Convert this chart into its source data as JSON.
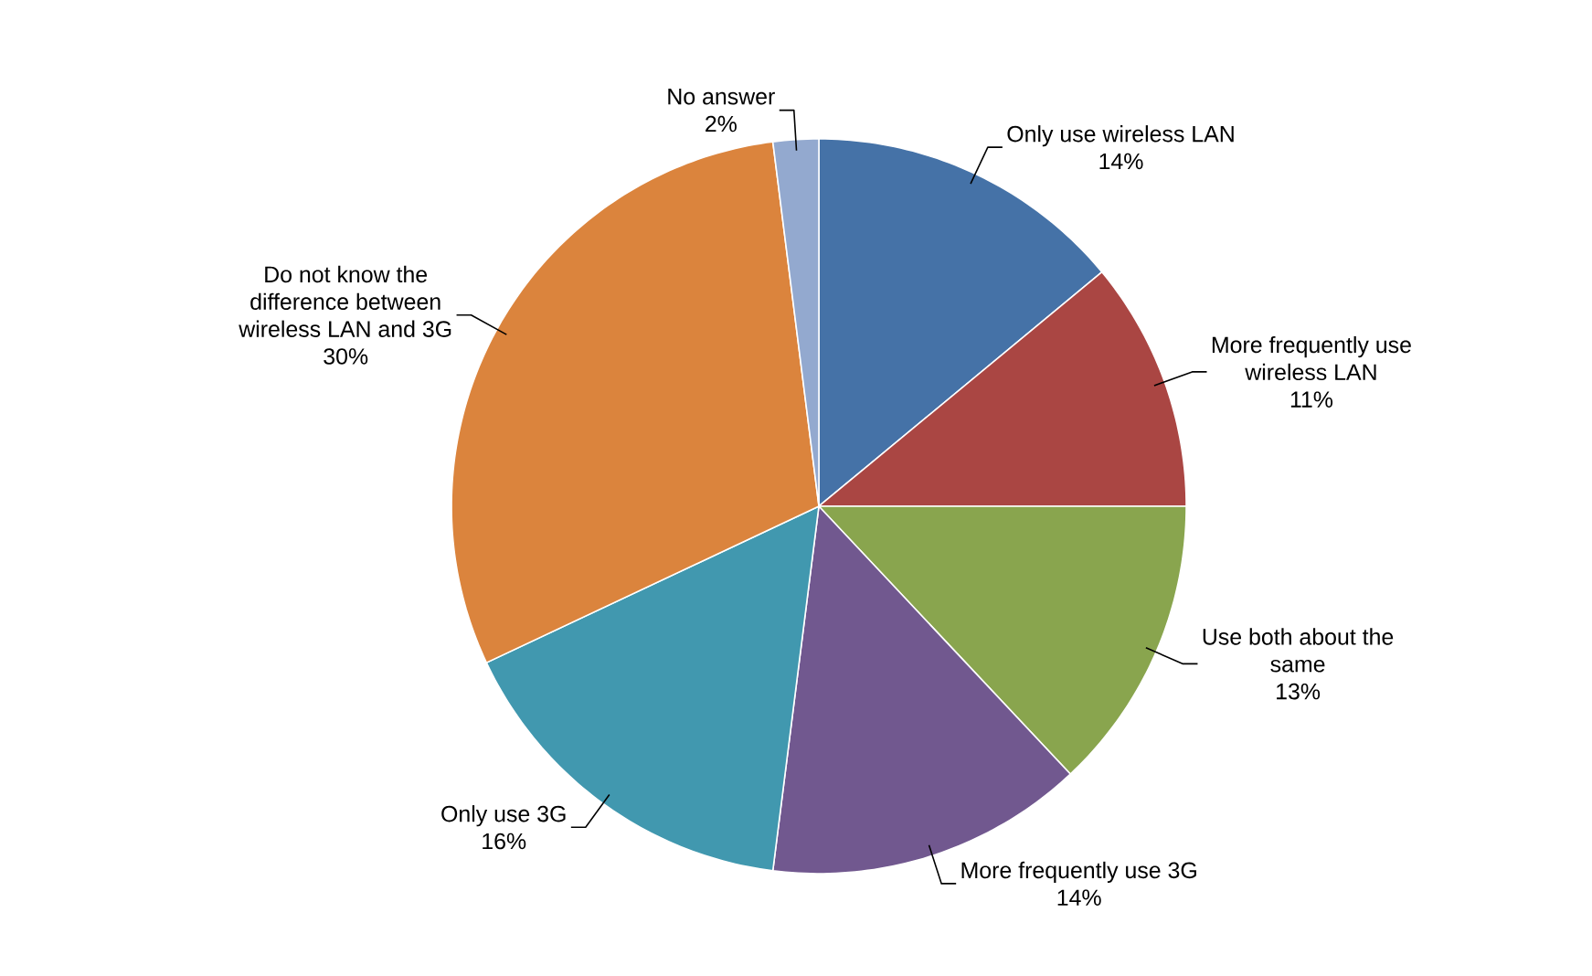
{
  "chart_data": {
    "type": "pie",
    "categories": [
      "Only use wireless LAN",
      "More frequently use wireless LAN",
      "Use both about the same",
      "More frequently use 3G",
      "Only use 3G",
      "Do not know the difference between wireless LAN and 3G",
      "No answer"
    ],
    "values": [
      14,
      11,
      13,
      14,
      16,
      30,
      2
    ],
    "value_labels": [
      "14%",
      "11%",
      "13%",
      "14%",
      "16%",
      "30%",
      "2%"
    ],
    "colors": [
      "#4572a7",
      "#aa4643",
      "#89a54e",
      "#71588f",
      "#4198af",
      "#db843d",
      "#93a9cf"
    ]
  }
}
